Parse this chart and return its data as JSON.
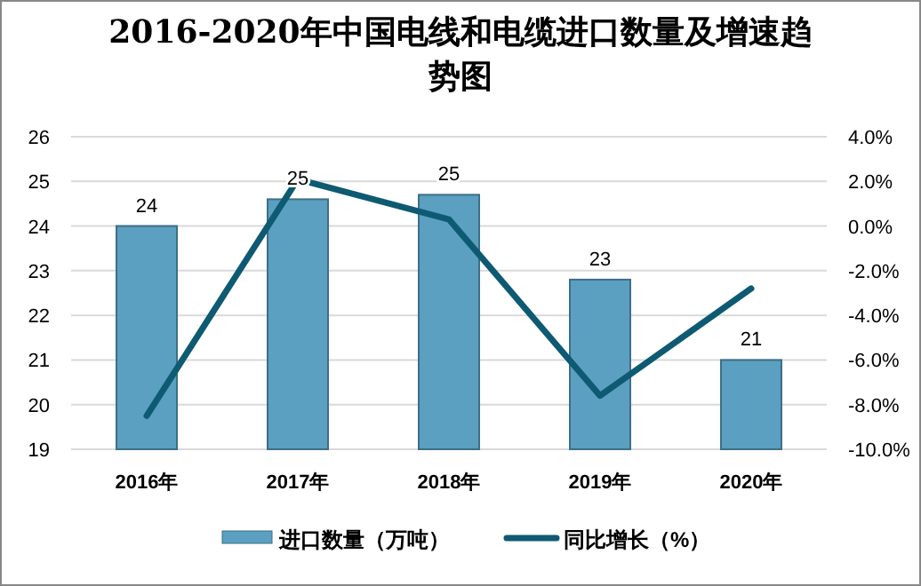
{
  "chart_data": {
    "type": "bar",
    "title": "2016-2020年中国电线和电缆进口数量及增速趋势图",
    "categories": [
      "2016年",
      "2017年",
      "2018年",
      "2019年",
      "2020年"
    ],
    "series": [
      {
        "name": "进口数量（万吨）",
        "color": "#5b9fc1",
        "values": [
          24.0,
          24.6,
          24.7,
          22.8,
          21.0
        ],
        "value_labels": [
          "24",
          "25",
          "25",
          "23",
          "21"
        ]
      },
      {
        "name": "同比增长（%）",
        "type": "line",
        "axis": "y2",
        "color": "#0e5a73",
        "values": [
          -8.5,
          2.1,
          0.3,
          -7.6,
          -2.8
        ]
      }
    ],
    "ylim": [
      19,
      26
    ],
    "yticks": [
      19,
      20,
      21,
      22,
      23,
      24,
      25,
      26
    ],
    "y2lim": [
      -10,
      4
    ],
    "y2ticks": [
      {
        "value": -10,
        "label": "-10.0%"
      },
      {
        "value": -8,
        "label": "-8.0%"
      },
      {
        "value": -6,
        "label": "-6.0%"
      },
      {
        "value": -4,
        "label": "-4.0%"
      },
      {
        "value": -2,
        "label": "-2.0%"
      },
      {
        "value": 0,
        "label": "0.0%"
      },
      {
        "value": 2,
        "label": "2.0%"
      },
      {
        "value": 4,
        "label": "4.0%"
      }
    ],
    "grid": "y",
    "legend": "bottom",
    "marker": "none"
  }
}
